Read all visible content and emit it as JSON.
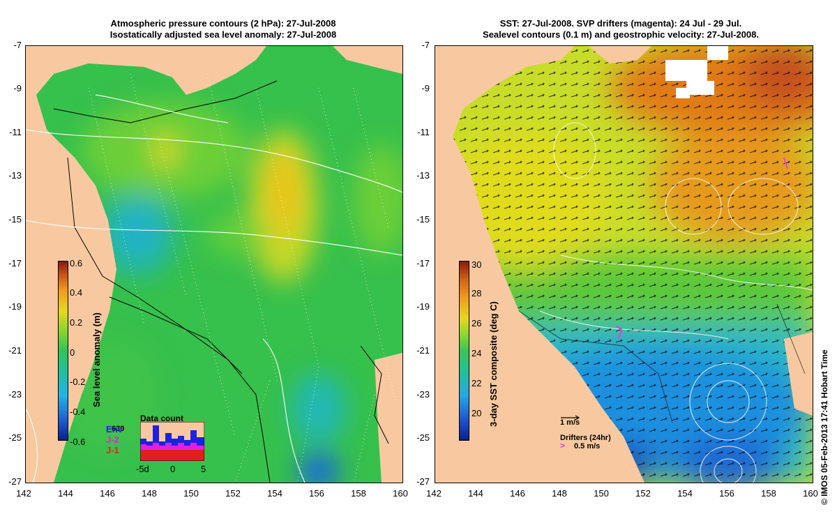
{
  "left_panel": {
    "title_line1": "Atmospheric pressure contours (2 hPa): 27-Jul-2008",
    "title_line2": "Isostatically adjusted sea level anomaly: 27-Jul-2008",
    "colorbar_label": "Sea level anomaly (m)",
    "colorbar_ticks": [
      "0.6",
      "0.4",
      "0.2",
      "0",
      "-0.2",
      "-0.4",
      "-0.6"
    ],
    "data_count_title": "Data count",
    "data_count_max": "630",
    "missions": [
      "Env",
      "J-2",
      "J-1"
    ],
    "histogram_axis": [
      "-5d",
      "0",
      "5"
    ]
  },
  "right_panel": {
    "title_line1": "SST: 27-Jul-2008. SVP drifters (magenta): 24 Jul - 29 Jul.",
    "title_line2": "Sealevel contours (0.1 m) and geostrophic velocity: 27-Jul-2008.",
    "colorbar_label": "3-day SST composite (deg C)",
    "colorbar_ticks": [
      "30",
      "28",
      "26",
      "24",
      "22",
      "20"
    ],
    "velocity_scale_label": "1 m/s",
    "drifters_label": "Drifters (24hr)",
    "drifter_speed_label": "0.5 m/s",
    "drifter_symbol": ">"
  },
  "axes": {
    "y_ticks": [
      "-7",
      "-9",
      "-11",
      "-13",
      "-15",
      "-17",
      "-19",
      "-21",
      "-23",
      "-25",
      "-27"
    ],
    "x_ticks": [
      "142",
      "144",
      "146",
      "148",
      "150",
      "152",
      "154",
      "156",
      "158",
      "160"
    ]
  },
  "credit": "© IMOS 05-Feb-2013 17:41 Hobart Time",
  "colors": {
    "land": "#f8c9a0",
    "ocean_base": "#3cc048",
    "ocean_deep_anom": "#1e9ad0",
    "ocean_high_anom": "#e6d81e",
    "sst_warm": "#e07a18",
    "sst_cool": "#1e64d2",
    "drifter": "#e040e0",
    "env": "#2020e0",
    "j2": "#e020e0",
    "j1": "#e02020"
  }
}
